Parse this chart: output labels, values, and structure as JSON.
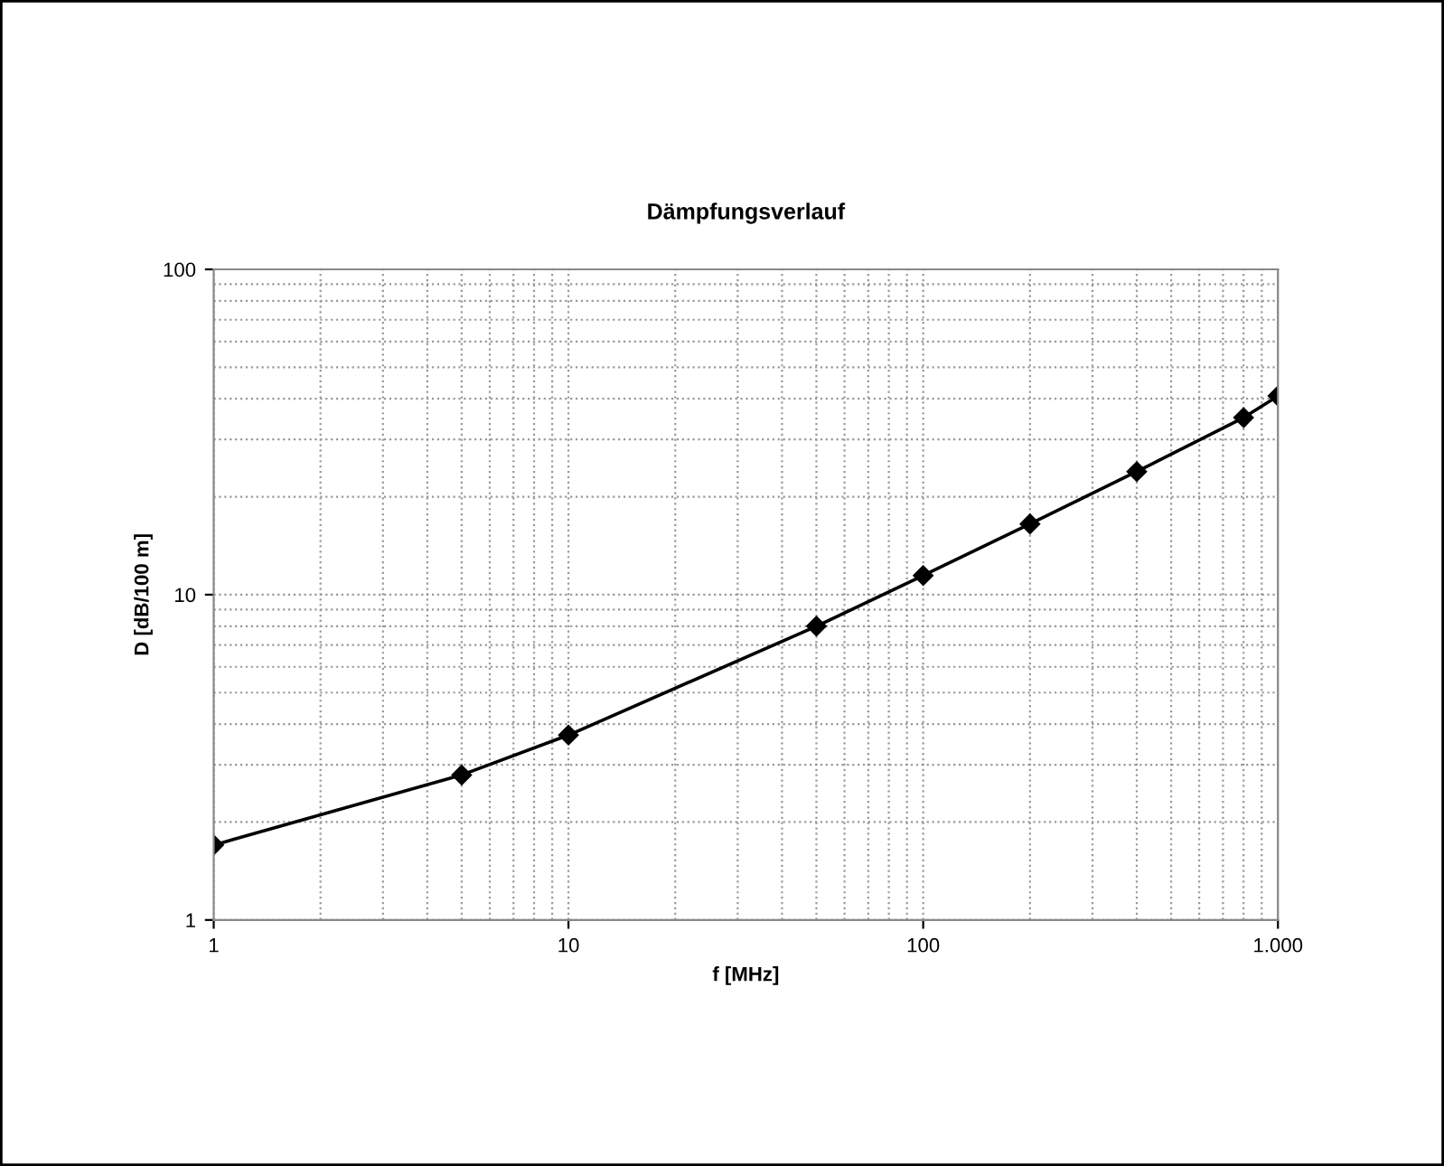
{
  "chart_data": {
    "type": "line",
    "title": "Dämpfungsverlauf",
    "xlabel": "f [MHz]",
    "ylabel": "D [dB/100 m]",
    "x": [
      1,
      5,
      10,
      50,
      100,
      200,
      400,
      800,
      1000
    ],
    "series": [
      {
        "color": "#000000",
        "values": [
          1.7,
          2.79,
          3.7,
          8.0,
          11.45,
          16.5,
          23.9,
          35.0,
          40.8
        ]
      }
    ],
    "log": "xy",
    "xlim": [
      1,
      1000
    ],
    "ylim": [
      1,
      100
    ],
    "xticks": [
      1,
      10,
      100,
      {
        "value": 1000,
        "label": "1.000"
      }
    ],
    "yticks": [
      1,
      10,
      100
    ],
    "grid": true,
    "marker": "diamond",
    "line_style": "solid"
  }
}
